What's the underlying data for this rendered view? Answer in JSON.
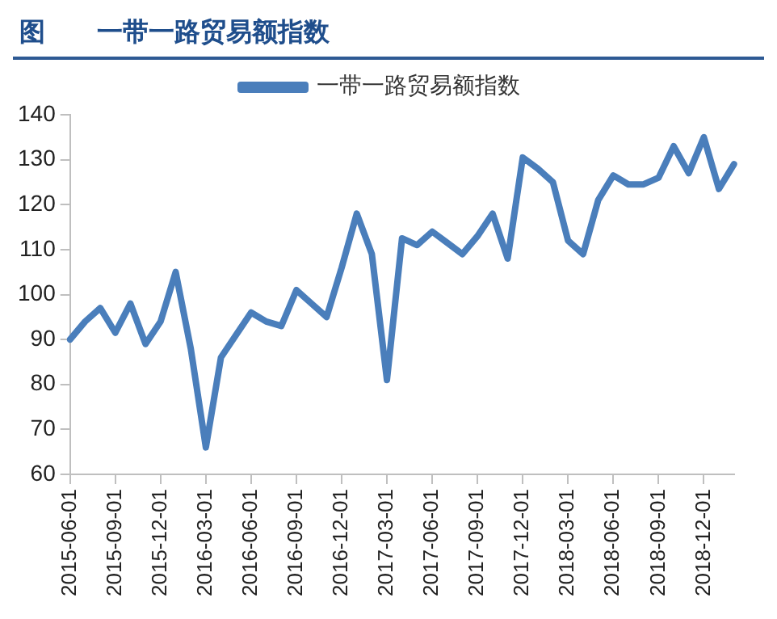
{
  "chart_data": {
    "type": "line",
    "title": "图　　一带一路贸易额指数",
    "categories": [
      "2015-06-01",
      null,
      null,
      "2015-09-01",
      null,
      null,
      "2015-12-01",
      null,
      null,
      "2016-03-01",
      null,
      null,
      "2016-06-01",
      null,
      null,
      "2016-09-01",
      null,
      null,
      "2016-12-01",
      null,
      null,
      "2017-03-01",
      null,
      null,
      "2017-06-01",
      null,
      null,
      "2017-09-01",
      null,
      null,
      "2017-12-01",
      null,
      null,
      "2018-03-01",
      null,
      null,
      "2018-06-01",
      null,
      null,
      "2018-09-01",
      null,
      null,
      "2018-12-01",
      null,
      null
    ],
    "series": [
      {
        "name": "一带一路贸易额指数",
        "color": "#4a7ebb",
        "values": [
          90,
          94,
          97,
          91.5,
          98,
          89,
          94,
          105,
          88,
          66,
          86,
          91,
          96,
          94,
          93,
          101,
          98,
          95,
          106,
          118,
          109,
          81,
          112.5,
          111,
          114,
          111.5,
          109,
          113,
          118,
          108,
          130.5,
          128,
          125,
          112,
          109,
          121,
          126.5,
          124.5,
          124.5,
          126,
          133,
          127,
          135,
          123.5,
          129
        ]
      }
    ],
    "ylim": [
      60,
      140
    ],
    "yticks": [
      60,
      70,
      80,
      90,
      100,
      110,
      120,
      130,
      140
    ],
    "grid": false,
    "legend": "top",
    "marker": "none",
    "line_style": "solid"
  }
}
